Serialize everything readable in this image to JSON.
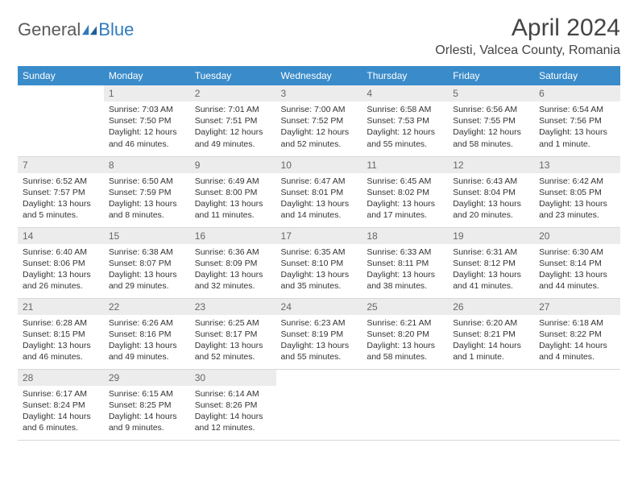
{
  "brand": {
    "word1": "General",
    "word2": "Blue",
    "accent_color": "#2f7bbf"
  },
  "title": "April 2024",
  "location": "Orlesti, Valcea County, Romania",
  "header_bg": "#3a8bc9",
  "daynum_bg": "#ececec",
  "weekdays": [
    "Sunday",
    "Monday",
    "Tuesday",
    "Wednesday",
    "Thursday",
    "Friday",
    "Saturday"
  ],
  "weeks": [
    [
      {
        "empty": true
      },
      {
        "num": "1",
        "sunrise": "Sunrise: 7:03 AM",
        "sunset": "Sunset: 7:50 PM",
        "daylight": "Daylight: 12 hours and 46 minutes."
      },
      {
        "num": "2",
        "sunrise": "Sunrise: 7:01 AM",
        "sunset": "Sunset: 7:51 PM",
        "daylight": "Daylight: 12 hours and 49 minutes."
      },
      {
        "num": "3",
        "sunrise": "Sunrise: 7:00 AM",
        "sunset": "Sunset: 7:52 PM",
        "daylight": "Daylight: 12 hours and 52 minutes."
      },
      {
        "num": "4",
        "sunrise": "Sunrise: 6:58 AM",
        "sunset": "Sunset: 7:53 PM",
        "daylight": "Daylight: 12 hours and 55 minutes."
      },
      {
        "num": "5",
        "sunrise": "Sunrise: 6:56 AM",
        "sunset": "Sunset: 7:55 PM",
        "daylight": "Daylight: 12 hours and 58 minutes."
      },
      {
        "num": "6",
        "sunrise": "Sunrise: 6:54 AM",
        "sunset": "Sunset: 7:56 PM",
        "daylight": "Daylight: 13 hours and 1 minute."
      }
    ],
    [
      {
        "num": "7",
        "sunrise": "Sunrise: 6:52 AM",
        "sunset": "Sunset: 7:57 PM",
        "daylight": "Daylight: 13 hours and 5 minutes."
      },
      {
        "num": "8",
        "sunrise": "Sunrise: 6:50 AM",
        "sunset": "Sunset: 7:59 PM",
        "daylight": "Daylight: 13 hours and 8 minutes."
      },
      {
        "num": "9",
        "sunrise": "Sunrise: 6:49 AM",
        "sunset": "Sunset: 8:00 PM",
        "daylight": "Daylight: 13 hours and 11 minutes."
      },
      {
        "num": "10",
        "sunrise": "Sunrise: 6:47 AM",
        "sunset": "Sunset: 8:01 PM",
        "daylight": "Daylight: 13 hours and 14 minutes."
      },
      {
        "num": "11",
        "sunrise": "Sunrise: 6:45 AM",
        "sunset": "Sunset: 8:02 PM",
        "daylight": "Daylight: 13 hours and 17 minutes."
      },
      {
        "num": "12",
        "sunrise": "Sunrise: 6:43 AM",
        "sunset": "Sunset: 8:04 PM",
        "daylight": "Daylight: 13 hours and 20 minutes."
      },
      {
        "num": "13",
        "sunrise": "Sunrise: 6:42 AM",
        "sunset": "Sunset: 8:05 PM",
        "daylight": "Daylight: 13 hours and 23 minutes."
      }
    ],
    [
      {
        "num": "14",
        "sunrise": "Sunrise: 6:40 AM",
        "sunset": "Sunset: 8:06 PM",
        "daylight": "Daylight: 13 hours and 26 minutes."
      },
      {
        "num": "15",
        "sunrise": "Sunrise: 6:38 AM",
        "sunset": "Sunset: 8:07 PM",
        "daylight": "Daylight: 13 hours and 29 minutes."
      },
      {
        "num": "16",
        "sunrise": "Sunrise: 6:36 AM",
        "sunset": "Sunset: 8:09 PM",
        "daylight": "Daylight: 13 hours and 32 minutes."
      },
      {
        "num": "17",
        "sunrise": "Sunrise: 6:35 AM",
        "sunset": "Sunset: 8:10 PM",
        "daylight": "Daylight: 13 hours and 35 minutes."
      },
      {
        "num": "18",
        "sunrise": "Sunrise: 6:33 AM",
        "sunset": "Sunset: 8:11 PM",
        "daylight": "Daylight: 13 hours and 38 minutes."
      },
      {
        "num": "19",
        "sunrise": "Sunrise: 6:31 AM",
        "sunset": "Sunset: 8:12 PM",
        "daylight": "Daylight: 13 hours and 41 minutes."
      },
      {
        "num": "20",
        "sunrise": "Sunrise: 6:30 AM",
        "sunset": "Sunset: 8:14 PM",
        "daylight": "Daylight: 13 hours and 44 minutes."
      }
    ],
    [
      {
        "num": "21",
        "sunrise": "Sunrise: 6:28 AM",
        "sunset": "Sunset: 8:15 PM",
        "daylight": "Daylight: 13 hours and 46 minutes."
      },
      {
        "num": "22",
        "sunrise": "Sunrise: 6:26 AM",
        "sunset": "Sunset: 8:16 PM",
        "daylight": "Daylight: 13 hours and 49 minutes."
      },
      {
        "num": "23",
        "sunrise": "Sunrise: 6:25 AM",
        "sunset": "Sunset: 8:17 PM",
        "daylight": "Daylight: 13 hours and 52 minutes."
      },
      {
        "num": "24",
        "sunrise": "Sunrise: 6:23 AM",
        "sunset": "Sunset: 8:19 PM",
        "daylight": "Daylight: 13 hours and 55 minutes."
      },
      {
        "num": "25",
        "sunrise": "Sunrise: 6:21 AM",
        "sunset": "Sunset: 8:20 PM",
        "daylight": "Daylight: 13 hours and 58 minutes."
      },
      {
        "num": "26",
        "sunrise": "Sunrise: 6:20 AM",
        "sunset": "Sunset: 8:21 PM",
        "daylight": "Daylight: 14 hours and 1 minute."
      },
      {
        "num": "27",
        "sunrise": "Sunrise: 6:18 AM",
        "sunset": "Sunset: 8:22 PM",
        "daylight": "Daylight: 14 hours and 4 minutes."
      }
    ],
    [
      {
        "num": "28",
        "sunrise": "Sunrise: 6:17 AM",
        "sunset": "Sunset: 8:24 PM",
        "daylight": "Daylight: 14 hours and 6 minutes."
      },
      {
        "num": "29",
        "sunrise": "Sunrise: 6:15 AM",
        "sunset": "Sunset: 8:25 PM",
        "daylight": "Daylight: 14 hours and 9 minutes."
      },
      {
        "num": "30",
        "sunrise": "Sunrise: 6:14 AM",
        "sunset": "Sunset: 8:26 PM",
        "daylight": "Daylight: 14 hours and 12 minutes."
      },
      {
        "empty": true
      },
      {
        "empty": true
      },
      {
        "empty": true
      },
      {
        "empty": true
      }
    ]
  ]
}
